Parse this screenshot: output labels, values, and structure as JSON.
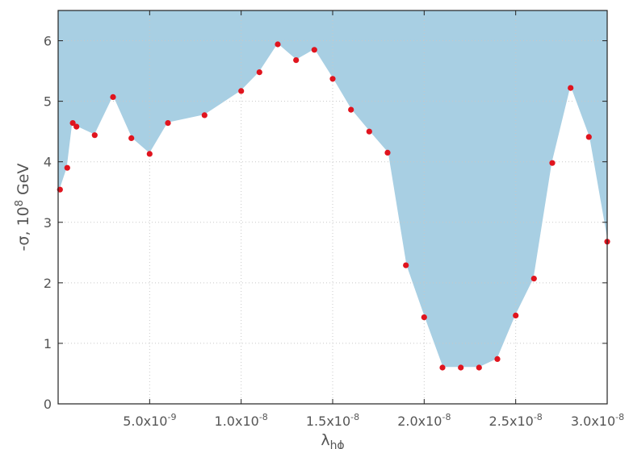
{
  "chart_data": {
    "type": "area",
    "title": "",
    "xlabel": "λ",
    "xlabel_sub": "hϕ",
    "ylabel": "-σ, 10",
    "ylabel_sup": "8",
    "ylabel_unit": " GeV",
    "xlim": [
      0,
      3e-08
    ],
    "ylim": [
      0,
      6.5
    ],
    "grid": true,
    "fill_color": "#a8cfe3",
    "marker_color": "#e0141e",
    "line_color": "#ffffff",
    "x_ticks": [
      {
        "value": 5e-09,
        "base": "5.0x10",
        "exp": "-9"
      },
      {
        "value": 1e-08,
        "base": "1.0x10",
        "exp": "-8"
      },
      {
        "value": 1.5e-08,
        "base": "1.5x10",
        "exp": "-8"
      },
      {
        "value": 2e-08,
        "base": "2.0x10",
        "exp": "-8"
      },
      {
        "value": 2.5e-08,
        "base": "2.5x10",
        "exp": "-8"
      },
      {
        "value": 3e-08,
        "base": "3.0x10",
        "exp": "-8"
      }
    ],
    "y_ticks": [
      0,
      1,
      2,
      3,
      4,
      5,
      6
    ],
    "series": [
      {
        "x": [
          1e-10,
          5e-10,
          8e-10,
          1e-09,
          2e-09,
          3e-09,
          4e-09,
          5e-09,
          6e-09,
          8e-09,
          1e-08,
          1.1e-08,
          1.2e-08,
          1.3e-08,
          1.4e-08,
          1.5e-08,
          1.6e-08,
          1.7e-08,
          1.8e-08,
          1.9e-08,
          2e-08,
          2.1e-08,
          2.2e-08,
          2.3e-08,
          2.4e-08,
          2.5e-08,
          2.6e-08,
          2.7e-08,
          2.8e-08,
          2.9e-08,
          3e-08
        ],
        "y": [
          3.54,
          3.9,
          4.64,
          4.58,
          4.44,
          5.07,
          4.39,
          4.13,
          4.64,
          4.77,
          5.17,
          5.48,
          5.94,
          5.68,
          5.85,
          5.37,
          4.86,
          4.5,
          4.15,
          2.29,
          1.43,
          0.6,
          0.6,
          0.6,
          0.74,
          1.46,
          2.07,
          3.98,
          5.22,
          4.41,
          2.68
        ]
      }
    ]
  }
}
